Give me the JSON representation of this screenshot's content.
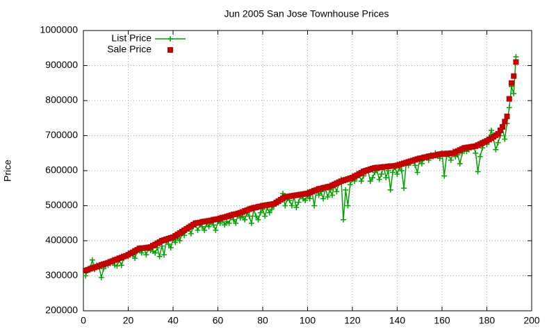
{
  "chart_data": {
    "type": "line",
    "title": "Jun 2005 San Jose Townhouse Prices",
    "y_label": "Price",
    "xlim": [
      0,
      200
    ],
    "xticks": [
      0,
      20,
      40,
      60,
      80,
      100,
      120,
      140,
      160,
      180,
      200
    ],
    "ylim": [
      200000,
      1000000
    ],
    "yticks": [
      200000,
      300000,
      400000,
      500000,
      600000,
      700000,
      800000,
      900000,
      1000000
    ],
    "grid": true,
    "legend": "top-left",
    "x": [
      1,
      2,
      3,
      4,
      5,
      6,
      7,
      8,
      9,
      10,
      11,
      12,
      13,
      14,
      15,
      16,
      17,
      18,
      19,
      20,
      21,
      22,
      23,
      24,
      25,
      26,
      27,
      28,
      29,
      30,
      31,
      32,
      33,
      34,
      35,
      36,
      37,
      38,
      39,
      40,
      41,
      42,
      43,
      44,
      45,
      46,
      47,
      48,
      49,
      50,
      51,
      52,
      53,
      54,
      55,
      56,
      57,
      58,
      59,
      60,
      61,
      62,
      63,
      64,
      65,
      66,
      67,
      68,
      69,
      70,
      71,
      72,
      73,
      74,
      75,
      76,
      77,
      78,
      79,
      80,
      81,
      82,
      83,
      84,
      85,
      86,
      87,
      88,
      89,
      90,
      91,
      92,
      93,
      94,
      95,
      96,
      97,
      98,
      99,
      100,
      101,
      102,
      103,
      104,
      105,
      106,
      107,
      108,
      109,
      110,
      111,
      112,
      113,
      114,
      115,
      116,
      117,
      118,
      119,
      120,
      121,
      122,
      123,
      124,
      125,
      126,
      127,
      128,
      129,
      130,
      131,
      132,
      133,
      134,
      135,
      136,
      137,
      138,
      139,
      140,
      141,
      142,
      143,
      144,
      145,
      146,
      147,
      148,
      149,
      150,
      151,
      152,
      153,
      154,
      155,
      156,
      157,
      158,
      159,
      160,
      161,
      162,
      163,
      164,
      165,
      166,
      167,
      168,
      169,
      170,
      171,
      172,
      173,
      174,
      175,
      176,
      177,
      178,
      179,
      180,
      181,
      182,
      183,
      184,
      185,
      186,
      187,
      188,
      189,
      190,
      191,
      192,
      193
    ],
    "series": [
      {
        "name": "List Price",
        "color": "#00a000",
        "style": "linespoints",
        "values": [
          300000,
          318000,
          322000,
          345000,
          318000,
          330000,
          325000,
          295000,
          320000,
          330000,
          330000,
          335000,
          340000,
          330000,
          328000,
          345000,
          330000,
          350000,
          358000,
          355000,
          365000,
          360000,
          350000,
          370000,
          375000,
          365000,
          380000,
          360000,
          378000,
          372000,
          370000,
          365000,
          380000,
          355000,
          385000,
          360000,
          400000,
          390000,
          380000,
          405000,
          395000,
          410000,
          400000,
          420000,
          415000,
          430000,
          435000,
          420000,
          440000,
          445000,
          430000,
          445000,
          440000,
          430000,
          450000,
          440000,
          455000,
          445000,
          430000,
          455000,
          450000,
          460000,
          445000,
          455000,
          450000,
          470000,
          460000,
          450000,
          475000,
          465000,
          470000,
          460000,
          480000,
          470000,
          450000,
          490000,
          470000,
          460000,
          480000,
          490000,
          470000,
          495000,
          480000,
          490000,
          500000,
          505000,
          510000,
          520000,
          535000,
          500000,
          520000,
          515000,
          500000,
          525000,
          495000,
          510000,
          530000,
          520000,
          515000,
          530000,
          520000,
          540000,
          500000,
          545000,
          530000,
          540000,
          520000,
          550000,
          525000,
          545000,
          530000,
          560000,
          540000,
          565000,
          575000,
          460000,
          545000,
          500000,
          560000,
          575000,
          570000,
          580000,
          590000,
          570000,
          585000,
          595000,
          600000,
          570000,
          580000,
          595000,
          600000,
          575000,
          590000,
          610000,
          580000,
          600000,
          545000,
          595000,
          610000,
          590000,
          610000,
          600000,
          550000,
          620000,
          615000,
          625000,
          630000,
          615000,
          595000,
          630000,
          620000,
          635000,
          640000,
          630000,
          645000,
          640000,
          650000,
          645000,
          635000,
          650000,
          585000,
          640000,
          645000,
          630000,
          655000,
          640000,
          645000,
          620000,
          650000,
          660000,
          655000,
          660000,
          665000,
          670000,
          650000,
          597000,
          640000,
          665000,
          680000,
          675000,
          695000,
          715000,
          690000,
          660000,
          680000,
          700000,
          720000,
          690000,
          735000,
          780000,
          840000,
          820000,
          925000
        ]
      },
      {
        "name": "Sale Price",
        "color": "#c00000",
        "style": "points",
        "values": [
          315000,
          317000,
          320000,
          322000,
          324000,
          326000,
          328000,
          331000,
          333000,
          335000,
          337000,
          340000,
          342000,
          345000,
          347000,
          350000,
          352000,
          355000,
          357000,
          360000,
          364000,
          367000,
          371000,
          374000,
          378000,
          379000,
          379000,
          380000,
          381000,
          382000,
          386000,
          389000,
          393000,
          396000,
          400000,
          402000,
          404000,
          406000,
          408000,
          410000,
          414000,
          418000,
          422000,
          426000,
          430000,
          434000,
          438000,
          442000,
          446000,
          450000,
          451000,
          452000,
          454000,
          455000,
          456000,
          457000,
          458000,
          460000,
          461000,
          462000,
          464000,
          466000,
          467000,
          469000,
          471000,
          473000,
          475000,
          476000,
          478000,
          480000,
          482000,
          485000,
          487000,
          490000,
          492000,
          494000,
          495000,
          497000,
          498000,
          500000,
          501000,
          502000,
          503000,
          504000,
          505000,
          509000,
          513000,
          517000,
          521000,
          525000,
          526000,
          527000,
          528000,
          529000,
          530000,
          531000,
          532000,
          533000,
          534000,
          535000,
          538000,
          540000,
          543000,
          545000,
          548000,
          549000,
          551000,
          552000,
          554000,
          555000,
          558000,
          561000,
          564000,
          567000,
          570000,
          572000,
          574000,
          576000,
          578000,
          580000,
          584000,
          587000,
          591000,
          594000,
          598000,
          600000,
          602000,
          604000,
          606000,
          608000,
          609000,
          609000,
          610000,
          611000,
          611000,
          612000,
          613000,
          613000,
          614000,
          615000,
          617000,
          619000,
          621000,
          623000,
          625000,
          627000,
          629000,
          631000,
          633000,
          635000,
          636000,
          638000,
          639000,
          641000,
          642000,
          643000,
          644000,
          646000,
          647000,
          648000,
          648000,
          649000,
          649000,
          650000,
          650000,
          653000,
          656000,
          659000,
          662000,
          665000,
          666000,
          667000,
          668000,
          669000,
          670000,
          673000,
          676000,
          679000,
          682000,
          685000,
          689000,
          693000,
          697000,
          701000,
          705000,
          715000,
          725000,
          740000,
          755000,
          805000,
          850000,
          870000,
          910000
        ]
      }
    ]
  }
}
